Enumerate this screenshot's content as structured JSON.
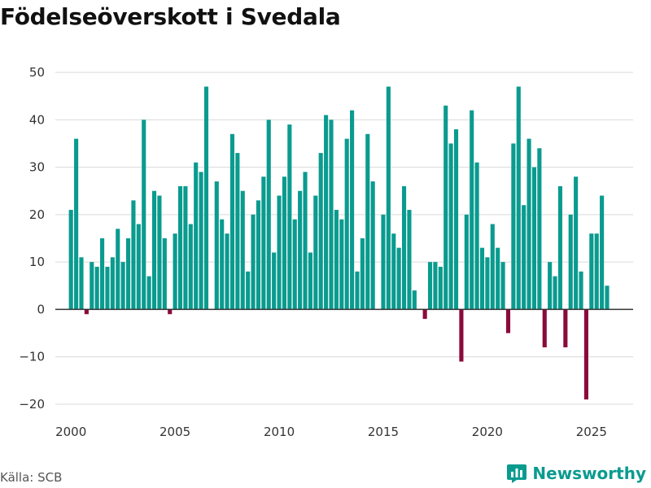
{
  "title": "Födelseöverskott i Svedala",
  "source": "Källa: SCB",
  "brand": "Newsworthy",
  "colors": {
    "positive": "#0a9b8f",
    "negative": "#8b0a3c",
    "grid": "#d9d9d9",
    "axis": "#333333"
  },
  "chart_data": {
    "type": "bar",
    "title": "Födelseöverskott i Svedala",
    "xlabel": "",
    "ylabel": "",
    "ylim": [
      -20,
      50
    ],
    "yticks": [
      -20,
      -10,
      0,
      10,
      20,
      30,
      40,
      50
    ],
    "xticks": [
      2000,
      2005,
      2010,
      2015,
      2020,
      2025
    ],
    "xlim": [
      1999.25,
      2027.0
    ],
    "start_year": 2000,
    "periods_per_year": 4,
    "values": [
      21,
      36,
      11,
      -1,
      10,
      9,
      15,
      9,
      11,
      17,
      10,
      15,
      23,
      18,
      40,
      7,
      25,
      24,
      15,
      -1,
      16,
      26,
      26,
      18,
      31,
      29,
      47,
      null,
      27,
      19,
      16,
      37,
      33,
      25,
      8,
      20,
      23,
      28,
      40,
      12,
      24,
      28,
      39,
      19,
      25,
      29,
      12,
      24,
      33,
      41,
      40,
      21,
      19,
      36,
      42,
      8,
      15,
      37,
      27,
      null,
      20,
      47,
      16,
      13,
      26,
      21,
      4,
      null,
      -2,
      10,
      10,
      9,
      43,
      35,
      38,
      -11,
      20,
      42,
      31,
      13,
      11,
      18,
      13,
      10,
      -5,
      35,
      47,
      22,
      36,
      30,
      34,
      -8,
      10,
      7,
      26,
      -8,
      20,
      28,
      8,
      -19,
      16,
      16,
      24,
      5
    ]
  }
}
